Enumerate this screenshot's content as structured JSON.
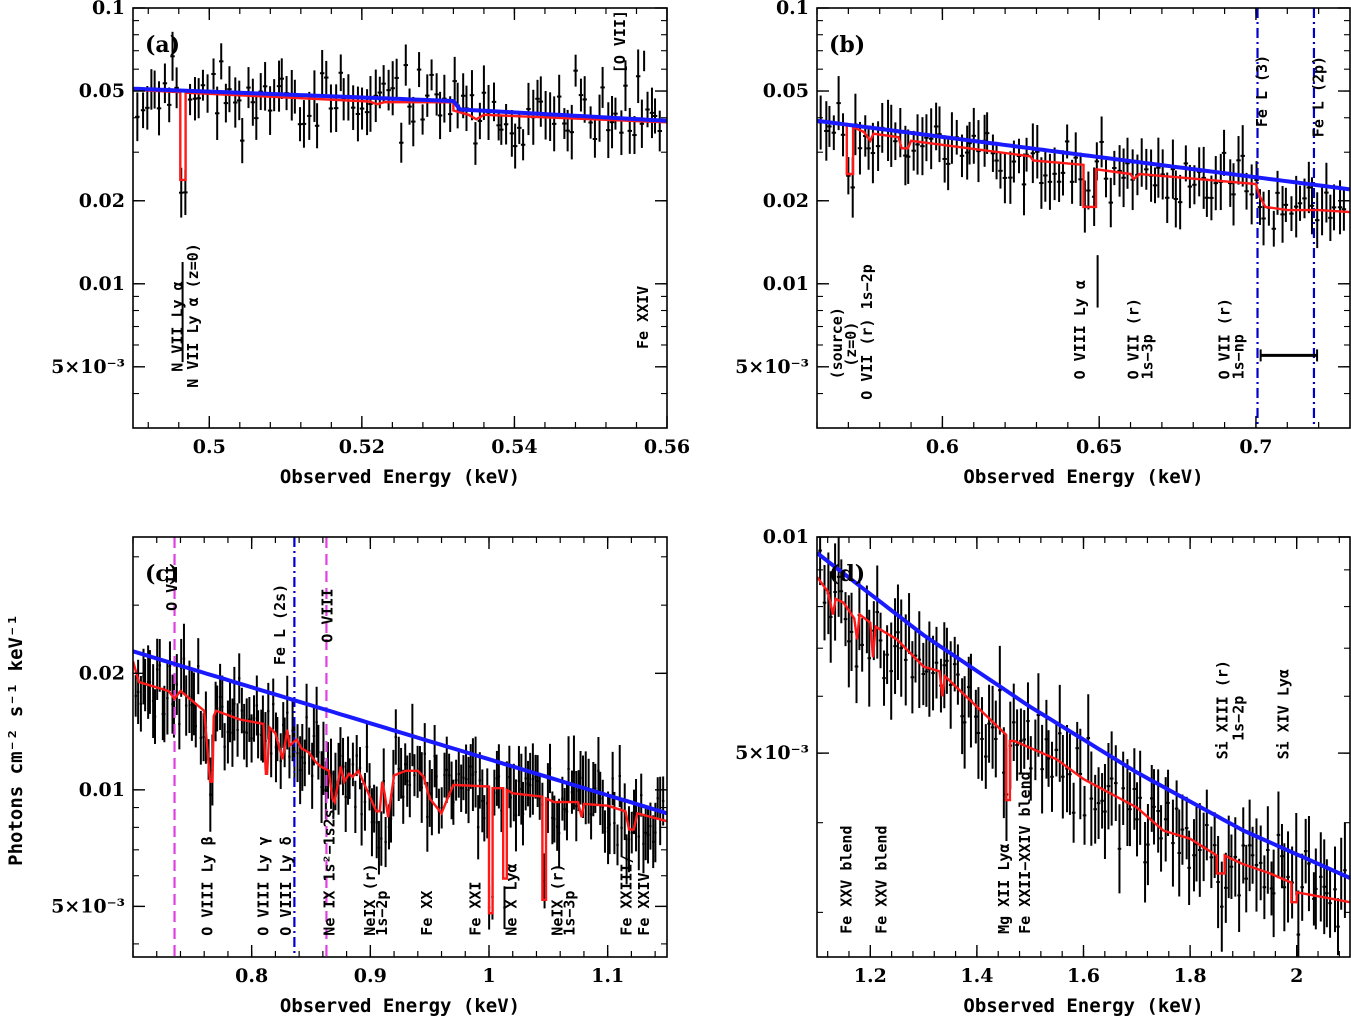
{
  "colors": {
    "data": "#000000",
    "continuum": "#1a1aff",
    "absorption_model": "#ff1a1a",
    "fe_l_edge": "#0000cc",
    "o_edge": "#e040e0",
    "bar": "#000000"
  },
  "ylabel": "Photons cm⁻² s⁻¹ keV⁻¹",
  "chart_data": [
    {
      "id": "a",
      "panel_label": "(a)",
      "type": "line",
      "yscale": "log",
      "xlabel": "Observed Energy (keV)",
      "xlim": [
        0.49,
        0.56
      ],
      "ylim": [
        0.003,
        0.1
      ],
      "xticks": [
        {
          "v": 0.5,
          "t": "0.5"
        },
        {
          "v": 0.52,
          "t": "0.52"
        },
        {
          "v": 0.54,
          "t": "0.54"
        },
        {
          "v": 0.56,
          "t": "0.56"
        }
      ],
      "yticks": [
        {
          "v": 0.1,
          "t": "0.1"
        },
        {
          "v": 0.05,
          "t": "0.05"
        },
        {
          "v": 0.02,
          "t": "0.02"
        },
        {
          "v": 0.01,
          "t": "0.01"
        },
        {
          "v": 0.005,
          "t": "5×10⁻³"
        }
      ],
      "continuum": {
        "x": [
          0.49,
          0.532,
          0.532,
          0.56
        ],
        "y": [
          0.051,
          0.046,
          0.043,
          0.039
        ]
      },
      "model": {
        "x": [
          0.49,
          0.4962,
          0.4962,
          0.4969,
          0.4969,
          0.521,
          0.522,
          0.523,
          0.532,
          0.532,
          0.534,
          0.535,
          0.536,
          0.56
        ],
        "y": [
          0.0505,
          0.0495,
          0.0238,
          0.0238,
          0.0493,
          0.0458,
          0.0448,
          0.0456,
          0.0455,
          0.0425,
          0.041,
          0.0395,
          0.041,
          0.0385
        ]
      },
      "data": {
        "seed": 11,
        "x0": 0.4905,
        "x1": 0.5595,
        "n": 120,
        "scatter": 0.2,
        "err": 0.18
      },
      "vlines": [],
      "annotations": [
        {
          "text": "N VII Ly α",
          "x": 0.4965,
          "y": 0.0048
        },
        {
          "text": "N VII Ly α (z=0)",
          "x": 0.4985,
          "y": 0.0042
        },
        {
          "text": "[O VII]",
          "x": 0.5545,
          "y": 0.058
        },
        {
          "text": "Fe XXIV",
          "x": 0.5575,
          "y": 0.0058
        }
      ],
      "ann_marks": [
        {
          "x": 0.4965,
          "y": 0.012,
          "y2": 0.0052
        },
        {
          "x": 0.557,
          "y": 0.07,
          "y2": 0.059
        }
      ]
    },
    {
      "id": "b",
      "panel_label": "(b)",
      "type": "line",
      "yscale": "log",
      "xlabel": "Observed Energy (keV)",
      "xlim": [
        0.56,
        0.73
      ],
      "ylim": [
        0.003,
        0.1
      ],
      "xticks": [
        {
          "v": 0.6,
          "t": "0.6"
        },
        {
          "v": 0.65,
          "t": "0.65"
        },
        {
          "v": 0.7,
          "t": "0.7"
        }
      ],
      "yticks": [
        {
          "v": 0.1,
          "t": "0.1"
        },
        {
          "v": 0.05,
          "t": "0.05"
        },
        {
          "v": 0.02,
          "t": "0.02"
        },
        {
          "v": 0.01,
          "t": "0.01"
        },
        {
          "v": 0.005,
          "t": "5×10⁻³"
        }
      ],
      "continuum": {
        "x": [
          0.56,
          0.73
        ],
        "y": [
          0.039,
          0.022
        ]
      },
      "model": {
        "x": [
          0.56,
          0.5695,
          0.5695,
          0.5715,
          0.5715,
          0.575,
          0.577,
          0.578,
          0.586,
          0.587,
          0.589,
          0.59,
          0.628,
          0.629,
          0.645,
          0.645,
          0.649,
          0.649,
          0.66,
          0.661,
          0.663,
          0.7,
          0.701,
          0.703,
          0.71,
          0.716,
          0.72,
          0.73
        ],
        "y": [
          0.039,
          0.038,
          0.025,
          0.025,
          0.037,
          0.0355,
          0.033,
          0.035,
          0.034,
          0.031,
          0.031,
          0.033,
          0.029,
          0.028,
          0.027,
          0.019,
          0.019,
          0.026,
          0.025,
          0.024,
          0.025,
          0.023,
          0.021,
          0.019,
          0.0185,
          0.0185,
          0.0185,
          0.0182
        ]
      },
      "data": {
        "seed": 23,
        "x0": 0.561,
        "x1": 0.729,
        "n": 120,
        "scatter": 0.17,
        "err": 0.2
      },
      "vlines": [
        {
          "x": 0.7005,
          "style": "fe"
        },
        {
          "x": 0.7185,
          "style": "fe"
        }
      ],
      "annotations": [
        {
          "text": "(source)",
          "x": 0.568,
          "y": 0.0045
        },
        {
          "text": "(z=0)",
          "x": 0.5725,
          "y": 0.005
        },
        {
          "text": "O VII (r) 1s−2p",
          "x": 0.5775,
          "y": 0.0038
        },
        {
          "text": "O VIII Ly α",
          "x": 0.6455,
          "y": 0.0045
        },
        {
          "text": "O VII (r)",
          "x": 0.6625,
          "y": 0.0045
        },
        {
          "text": "1s−3p",
          "x": 0.667,
          "y": 0.0045
        },
        {
          "text": "O VII (r)",
          "x": 0.6915,
          "y": 0.0045
        },
        {
          "text": "1s−np",
          "x": 0.696,
          "y": 0.0045
        },
        {
          "text": "Fe L (3)",
          "x": 0.7035,
          "y": 0.037
        },
        {
          "text": "Fe L (2p)",
          "x": 0.7215,
          "y": 0.034
        }
      ],
      "ann_marks": [
        {
          "x": 0.6495,
          "y": 0.0127,
          "y2": 0.0082
        }
      ],
      "scale_bar": {
        "x1": 0.7015,
        "x2": 0.7195,
        "y": 0.0055
      }
    },
    {
      "id": "c",
      "panel_label": "(c)",
      "type": "line",
      "yscale": "log",
      "xlabel": "Observed Energy (keV)",
      "xlim": [
        0.7,
        1.15
      ],
      "ylim": [
        0.0037,
        0.045
      ],
      "xticks": [
        {
          "v": 0.8,
          "t": "0.8"
        },
        {
          "v": 0.9,
          "t": "0.9"
        },
        {
          "v": 1.0,
          "t": "1"
        },
        {
          "v": 1.1,
          "t": "1.1"
        }
      ],
      "yticks": [
        {
          "v": 0.02,
          "t": "0.02"
        },
        {
          "v": 0.01,
          "t": "0.01"
        },
        {
          "v": 0.005,
          "t": "5×10⁻³"
        }
      ],
      "continuum": {
        "x": [
          0.7,
          1.15
        ],
        "y": [
          0.0228,
          0.0087
        ]
      },
      "model": {
        "x": [
          0.7,
          0.705,
          0.73,
          0.735,
          0.74,
          0.76,
          0.765,
          0.767,
          0.768,
          0.77,
          0.79,
          0.81,
          0.812,
          0.813,
          0.815,
          0.82,
          0.826,
          0.83,
          0.832,
          0.838,
          0.842,
          0.848,
          0.854,
          0.858,
          0.865,
          0.868,
          0.87,
          0.875,
          0.878,
          0.882,
          0.885,
          0.89,
          0.905,
          0.908,
          0.91,
          0.912,
          0.915,
          0.92,
          0.93,
          0.94,
          0.945,
          0.95,
          0.96,
          0.965,
          0.97,
          1.0,
          1.0,
          1.003,
          1.003,
          1.012,
          1.012,
          1.015,
          1.015,
          1.02,
          1.045,
          1.045,
          1.048,
          1.048,
          1.055,
          1.075,
          1.078,
          1.08,
          1.1,
          1.115,
          1.118,
          1.122,
          1.125,
          1.15
        ],
        "y": [
          0.0215,
          0.019,
          0.018,
          0.0172,
          0.018,
          0.016,
          0.0105,
          0.0105,
          0.0155,
          0.016,
          0.0152,
          0.0148,
          0.011,
          0.011,
          0.0145,
          0.014,
          0.012,
          0.0143,
          0.013,
          0.0135,
          0.0128,
          0.0125,
          0.0118,
          0.0115,
          0.0112,
          0.0095,
          0.0093,
          0.0115,
          0.0105,
          0.011,
          0.0108,
          0.0112,
          0.0088,
          0.0088,
          0.0105,
          0.0098,
          0.0085,
          0.0109,
          0.0112,
          0.0112,
          0.0108,
          0.0095,
          0.0087,
          0.0095,
          0.0103,
          0.0102,
          0.0048,
          0.0048,
          0.0101,
          0.0101,
          0.0059,
          0.0059,
          0.01,
          0.0098,
          0.0096,
          0.0052,
          0.0052,
          0.0095,
          0.0093,
          0.0093,
          0.0085,
          0.0092,
          0.0091,
          0.0088,
          0.0079,
          0.0079,
          0.0087,
          0.0083
        ]
      },
      "data": {
        "seed": 37,
        "x0": 0.702,
        "x1": 1.148,
        "n": 220,
        "scatter": 0.16,
        "err": 0.17
      },
      "vlines": [
        {
          "x": 0.735,
          "style": "o"
        },
        {
          "x": 0.836,
          "style": "fe"
        },
        {
          "x": 0.863,
          "style": "o"
        }
      ],
      "annotations": [
        {
          "text": "O VII",
          "x": 0.737,
          "y": 0.029
        },
        {
          "text": "Fe L (2s)",
          "x": 0.828,
          "y": 0.021
        },
        {
          "text": "O VIII",
          "x": 0.868,
          "y": 0.024
        },
        {
          "text": "O VIII Ly β",
          "x": 0.767,
          "y": 0.0042
        },
        {
          "text": "O VIII Ly γ",
          "x": 0.814,
          "y": 0.0042
        },
        {
          "text": "O VIII Ly δ",
          "x": 0.833,
          "y": 0.0042
        },
        {
          "text": "Ne IX 1s²−1s2s",
          "x": 0.87,
          "y": 0.0042
        },
        {
          "text": "NeIX (r)",
          "x": 0.904,
          "y": 0.0042
        },
        {
          "text": "1s−2p",
          "x": 0.914,
          "y": 0.0042
        },
        {
          "text": "Fe XX",
          "x": 0.952,
          "y": 0.0042
        },
        {
          "text": "Fe XXI",
          "x": 0.993,
          "y": 0.0042
        },
        {
          "text": "Ne X Lyα",
          "x": 1.023,
          "y": 0.0042
        },
        {
          "text": "NeIX (r)",
          "x": 1.062,
          "y": 0.0042
        },
        {
          "text": "1s−3p",
          "x": 1.072,
          "y": 0.0042
        },
        {
          "text": "Fe XXIII/",
          "x": 1.12,
          "y": 0.0042
        },
        {
          "text": "Fe XXIV",
          "x": 1.135,
          "y": 0.0042
        }
      ],
      "ann_marks": []
    },
    {
      "id": "d",
      "panel_label": "(d)",
      "type": "line",
      "yscale": "log",
      "xlabel": "Observed Energy (keV)",
      "xlim": [
        1.1,
        2.1
      ],
      "ylim": [
        0.0026,
        0.01
      ],
      "xticks": [
        {
          "v": 1.2,
          "t": "1.2"
        },
        {
          "v": 1.4,
          "t": "1.4"
        },
        {
          "v": 1.6,
          "t": "1.6"
        },
        {
          "v": 1.8,
          "t": "1.8"
        },
        {
          "v": 2.0,
          "t": "2"
        }
      ],
      "yticks": [
        {
          "v": 0.01,
          "t": "0.01"
        },
        {
          "v": 0.005,
          "t": "5×10⁻³"
        }
      ],
      "continuum": {
        "x": [
          1.1,
          1.3,
          1.5,
          1.7,
          1.9,
          2.1
        ],
        "y": [
          0.0095,
          0.0073,
          0.0058,
          0.0047,
          0.0039,
          0.00335
        ]
      },
      "model": {
        "x": [
          1.1,
          1.12,
          1.13,
          1.135,
          1.15,
          1.17,
          1.175,
          1.18,
          1.2,
          1.205,
          1.21,
          1.25,
          1.3,
          1.33,
          1.335,
          1.34,
          1.4,
          1.455,
          1.455,
          1.462,
          1.462,
          1.47,
          1.55,
          1.6,
          1.7,
          1.75,
          1.8,
          1.85,
          1.85,
          1.865,
          1.865,
          1.9,
          1.95,
          1.99,
          1.99,
          2.0,
          2.0,
          2.05,
          2.1
        ],
        "y": [
          0.0088,
          0.0084,
          0.0078,
          0.0082,
          0.0081,
          0.0077,
          0.0072,
          0.0078,
          0.0076,
          0.0068,
          0.0075,
          0.0072,
          0.0066,
          0.0065,
          0.006,
          0.0064,
          0.0058,
          0.0053,
          0.0043,
          0.0043,
          0.0052,
          0.0052,
          0.0049,
          0.0046,
          0.0042,
          0.0039,
          0.0038,
          0.0036,
          0.0034,
          0.0034,
          0.0036,
          0.0035,
          0.0034,
          0.0033,
          0.0031,
          0.0031,
          0.0032,
          0.00315,
          0.0031
        ]
      },
      "data": {
        "seed": 51,
        "x0": 1.105,
        "x1": 2.095,
        "n": 150,
        "scatter": 0.1,
        "err": 0.12
      },
      "vlines": [],
      "annotations": [
        {
          "text": "Fe XXV blend",
          "x": 1.165,
          "y": 0.0028
        },
        {
          "text": "Fe XXV blend",
          "x": 1.23,
          "y": 0.0028
        },
        {
          "text": "Mg XII Lyα",
          "x": 1.46,
          "y": 0.0028
        },
        {
          "text": "Fe XXII−XXIV blend",
          "x": 1.5,
          "y": 0.0028
        },
        {
          "text": "Si XIII (r)",
          "x": 1.87,
          "y": 0.0049
        },
        {
          "text": "1s−2p",
          "x": 1.9,
          "y": 0.0052
        },
        {
          "text": "Si XIV Lyα",
          "x": 1.985,
          "y": 0.0049
        }
      ],
      "ann_marks": []
    }
  ]
}
